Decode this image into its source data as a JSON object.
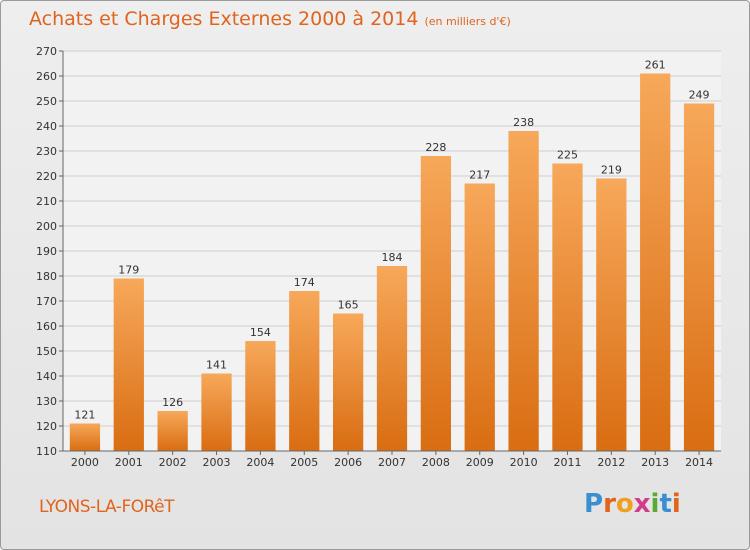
{
  "title": "Achats et Charges Externes 2000 à 2014",
  "subtitle": "(en milliers d'€)",
  "location": "LYONS-LA-FORêT",
  "brand": {
    "letters": [
      "P",
      "r",
      "o",
      "x",
      "i",
      "t",
      "i"
    ],
    "colors": [
      "#3a8fd1",
      "#e0641e",
      "#f0a020",
      "#d23c8c",
      "#5aaa32",
      "#3a8fd1",
      "#e0641e"
    ]
  },
  "colors": {
    "accent": "#e0641e",
    "bar_top": "#f7a85a",
    "bar_bottom": "#d96d12",
    "grid": "#cfcfcf"
  },
  "chart_data": {
    "type": "bar",
    "title": "Achats et Charges Externes 2000 à 2014",
    "subtitle": "(en milliers d'€)",
    "categories": [
      "2000",
      "2001",
      "2002",
      "2003",
      "2004",
      "2005",
      "2006",
      "2007",
      "2008",
      "2009",
      "2010",
      "2011",
      "2012",
      "2013",
      "2014"
    ],
    "values": [
      121,
      179,
      126,
      141,
      154,
      174,
      165,
      184,
      228,
      217,
      238,
      225,
      219,
      261,
      249
    ],
    "ylim": [
      110,
      270
    ],
    "yticks": [
      110,
      120,
      130,
      140,
      150,
      160,
      170,
      180,
      190,
      200,
      210,
      220,
      230,
      240,
      250,
      260,
      270
    ],
    "grid": true,
    "data_labels": true
  }
}
